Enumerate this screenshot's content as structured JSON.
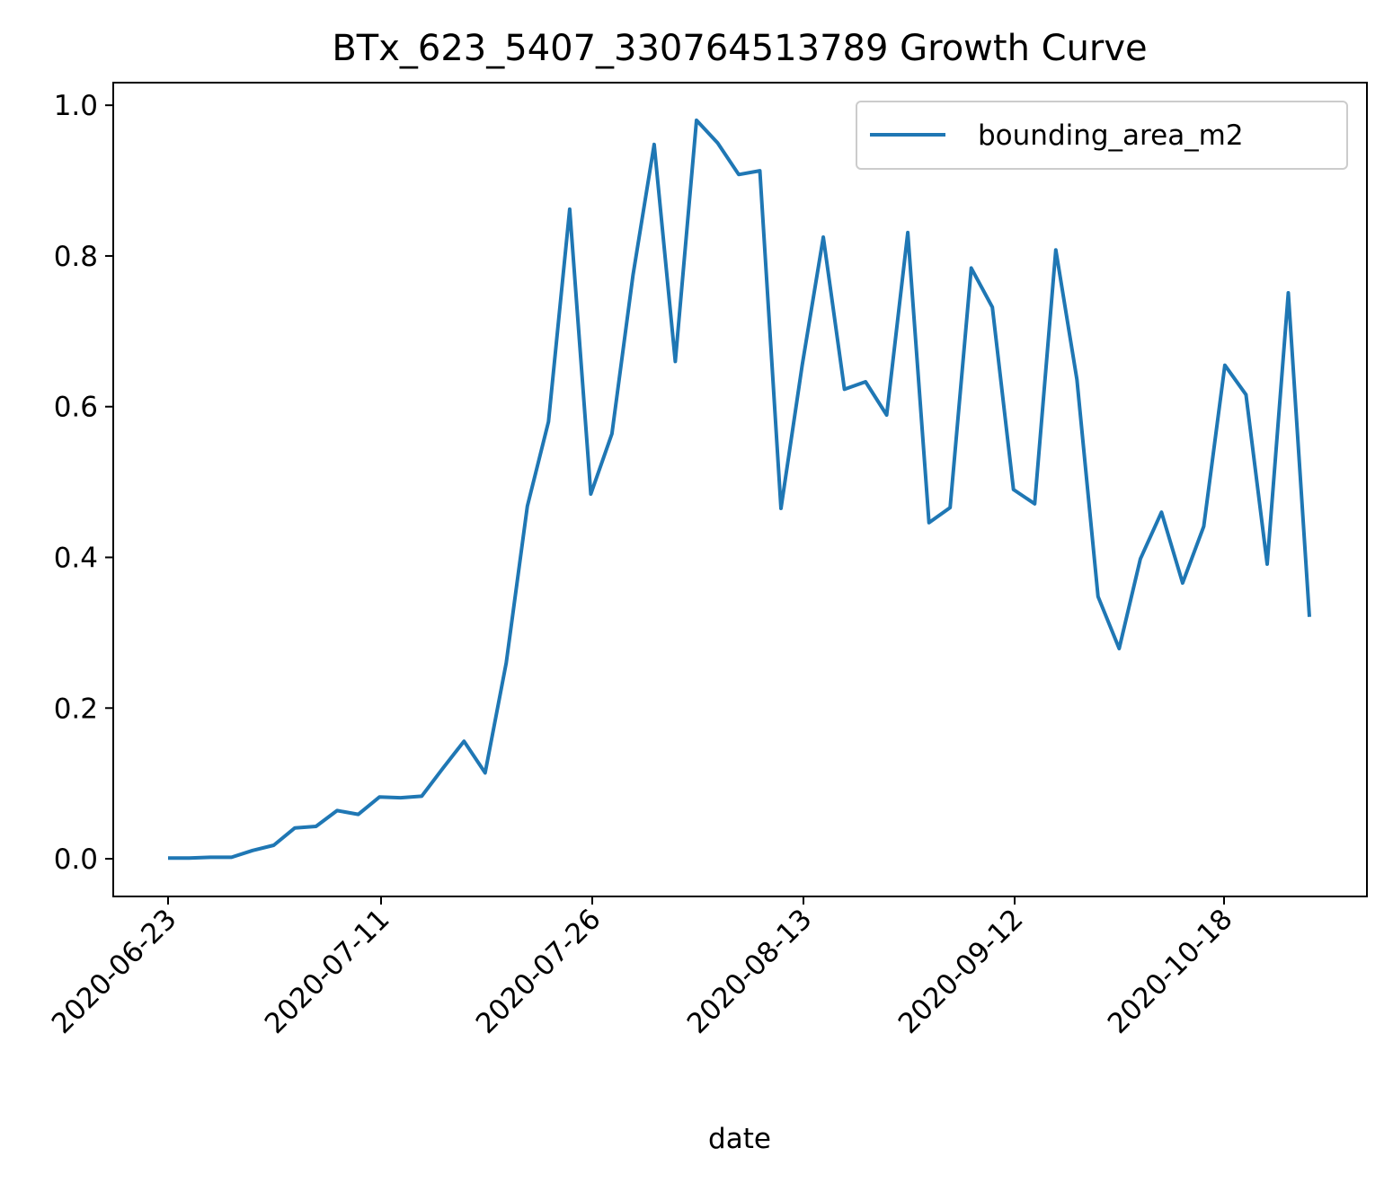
{
  "chart_data": {
    "type": "line",
    "title": "BTx_623_5407_330764513789 Growth Curve",
    "xlabel": "date",
    "ylabel": "",
    "ylim": [
      -0.05,
      1.03
    ],
    "x_tick_labels": [
      "2020-06-23",
      "2020-07-11",
      "2020-07-26",
      "2020-08-13",
      "2020-09-12",
      "2020-10-18"
    ],
    "y_ticks": [
      0.0,
      0.2,
      0.4,
      0.6,
      0.8,
      1.0
    ],
    "y_tick_labels": [
      "0.0",
      "0.2",
      "0.4",
      "0.6",
      "0.8",
      "1.0"
    ],
    "grid": false,
    "legend_position": "top-right",
    "color": "#1f77b4",
    "series": [
      {
        "name": "bounding_area_m2",
        "values": [
          0.001,
          0.001,
          0.002,
          0.002,
          0.011,
          0.018,
          0.041,
          0.043,
          0.064,
          0.059,
          0.082,
          0.081,
          0.083,
          0.12,
          0.156,
          0.114,
          0.26,
          0.468,
          0.58,
          0.862,
          0.484,
          0.564,
          0.775,
          0.948,
          0.66,
          0.98,
          0.95,
          0.908,
          0.913,
          0.465,
          0.655,
          0.825,
          0.623,
          0.633,
          0.589,
          0.831,
          0.446,
          0.466,
          0.784,
          0.732,
          0.49,
          0.471,
          0.808,
          0.636,
          0.348,
          0.279,
          0.398,
          0.46,
          0.366,
          0.441,
          0.655,
          0.616,
          0.391,
          0.751,
          0.321
        ]
      }
    ]
  }
}
